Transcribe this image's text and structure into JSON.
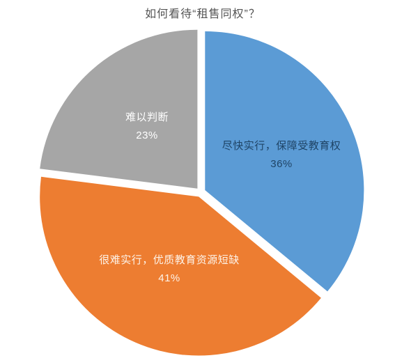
{
  "title": "如何看待“租售同权”？",
  "colors": {
    "background": "#ffffff",
    "title_text": "#555555",
    "slice_gap": "#ffffff"
  },
  "chart_data": {
    "type": "pie",
    "title": "如何看待“租售同权”？",
    "legend_position": "none",
    "start_angle_deg": 0,
    "direction": "clockwise",
    "exploded": true,
    "slices": [
      {
        "label": "尽快实行，保障受教育权",
        "value": 36,
        "pct_label": "36%",
        "color": "#5B9BD5",
        "text_color": "#1F4466"
      },
      {
        "label": "很难实行，优质教育资源短缺",
        "value": 41,
        "pct_label": "41%",
        "color": "#ED7D31",
        "text_color": "#FDF3E9"
      },
      {
        "label": "难以判断",
        "value": 23,
        "pct_label": "23%",
        "color": "#A6A6A6",
        "text_color": "#FFFFFF"
      }
    ]
  }
}
